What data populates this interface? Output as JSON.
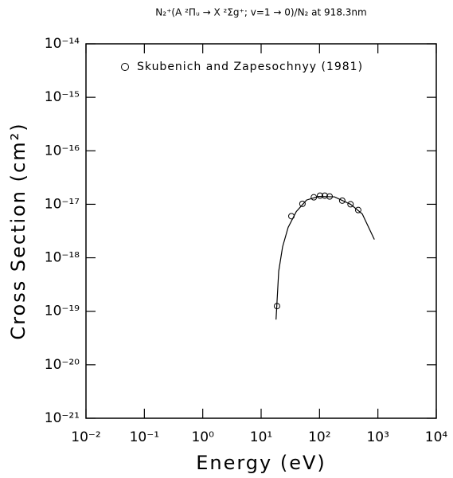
{
  "chart_data": {
    "type": "scatter",
    "title": "N₂⁺(A ²Πᵤ → X ²Σg⁺; v=1 → 0)/N₂ at 918.3nm",
    "x_label": "Energy (eV)",
    "y_label": "Cross Section (cm²)",
    "xscale": "log",
    "yscale": "log",
    "xlim": [
      0.01,
      10000
    ],
    "ylim": [
      1e-21,
      1e-14
    ],
    "xticks": [
      {
        "value": 0.01,
        "label": "10⁻²"
      },
      {
        "value": 0.1,
        "label": "10⁻¹"
      },
      {
        "value": 1,
        "label": "10⁰"
      },
      {
        "value": 10,
        "label": "10¹"
      },
      {
        "value": 100,
        "label": "10²"
      },
      {
        "value": 1000,
        "label": "10³"
      },
      {
        "value": 10000,
        "label": "10⁴"
      }
    ],
    "yticks": [
      {
        "value": 1e-21,
        "label": "10⁻²¹"
      },
      {
        "value": 1e-20,
        "label": "10⁻²⁰"
      },
      {
        "value": 1e-19,
        "label": "10⁻¹⁹"
      },
      {
        "value": 1e-18,
        "label": "10⁻¹⁸"
      },
      {
        "value": 1e-17,
        "label": "10⁻¹⁷"
      },
      {
        "value": 1e-16,
        "label": "10⁻¹⁶"
      },
      {
        "value": 1e-15,
        "label": "10⁻¹⁵"
      },
      {
        "value": 1e-14,
        "label": "10⁻¹⁴"
      }
    ],
    "legend": "top-left",
    "series": [
      {
        "name": "Skubenich and Zapesochnyy (1981)",
        "type": "scatter",
        "color": "#000000",
        "x": [
          18.7,
          33,
          51,
          80,
          102,
          123,
          149,
          245,
          340,
          460
        ],
        "values": [
          1.25e-19,
          6e-18,
          1.02e-17,
          1.35e-17,
          1.45e-17,
          1.45e-17,
          1.4e-17,
          1.17e-17,
          1e-17,
          7.8e-18
        ]
      },
      {
        "type": "line",
        "color": "#000000",
        "x": [
          18,
          20,
          23.3,
          29,
          40,
          60,
          96,
          180,
          340,
          540,
          870
        ],
        "values": [
          7e-20,
          5.6e-19,
          1.6e-18,
          3.7e-18,
          7.3e-18,
          1.2e-17,
          1.4e-17,
          1.38e-17,
          1e-17,
          6.6e-18,
          2.2e-18
        ]
      }
    ]
  }
}
